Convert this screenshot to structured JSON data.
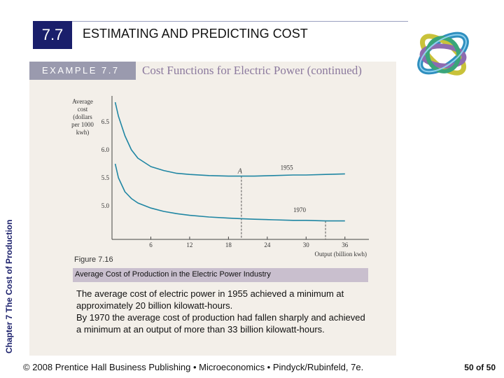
{
  "side_label": "Chapter 7 The Cost of Production",
  "section": {
    "number": "7.7",
    "title": "ESTIMATING AND PREDICTING COST"
  },
  "example": {
    "label": "EXAMPLE 7.7",
    "title": "Cost Functions for Electric Power (continued)"
  },
  "chart_data": {
    "type": "line",
    "ylabel": "Average cost (dollars per 1000 kwh)",
    "xlabel": "Output (billion kwh)",
    "x_ticks": [
      6,
      12,
      18,
      24,
      30,
      36
    ],
    "y_ticks": [
      5.0,
      5.5,
      6.0,
      6.5
    ],
    "y_tick_labels": [
      "5.0",
      "5.5",
      "6.0",
      "6.5"
    ],
    "xlim": [
      0,
      37
    ],
    "ylim": [
      4.4,
      6.9
    ],
    "series": [
      {
        "name": "1955",
        "x": [
          0.5,
          1,
          2,
          3,
          4,
          6,
          8,
          10,
          12,
          15,
          18,
          20,
          22,
          25,
          28,
          30,
          33,
          36
        ],
        "y": [
          6.85,
          6.6,
          6.25,
          6.0,
          5.85,
          5.7,
          5.63,
          5.58,
          5.56,
          5.54,
          5.53,
          5.53,
          5.53,
          5.54,
          5.55,
          5.55,
          5.56,
          5.57
        ]
      },
      {
        "name": "1970",
        "x": [
          0.5,
          1,
          2,
          3,
          4,
          6,
          8,
          10,
          12,
          15,
          18,
          20,
          22,
          25,
          28,
          30,
          33,
          36
        ],
        "y": [
          5.75,
          5.5,
          5.25,
          5.13,
          5.05,
          4.96,
          4.9,
          4.86,
          4.83,
          4.8,
          4.78,
          4.77,
          4.76,
          4.75,
          4.74,
          4.74,
          4.73,
          4.73
        ]
      }
    ],
    "annotations": [
      {
        "text": "A",
        "x": 20,
        "y": 5.53
      },
      {
        "text": "1955",
        "x": 27,
        "y": 5.62
      },
      {
        "text": "1970",
        "x": 29,
        "y": 4.86
      }
    ],
    "reference_lines": [
      {
        "type": "vertical",
        "x": 20,
        "from_y": 5.53
      },
      {
        "type": "vertical",
        "x": 33,
        "from_y": 4.73
      }
    ],
    "grid": false
  },
  "figure": {
    "number": "Figure 7.16",
    "caption": "Average Cost of Production in the Electric Power Industry",
    "paragraphs": [
      "The average cost of electric power in 1955 achieved a minimum at approximately 20 billion kilowatt-hours.",
      "By 1970 the average cost of production had fallen sharply and achieved a minimum at an output of more than 33 billion kilowatt-hours."
    ]
  },
  "footer": "© 2008 Prentice Hall Business Publishing • Microeconomics • Pindyck/Rubinfeld, 7e.",
  "page": "50 of 50",
  "colors": {
    "navy": "#1a1f6b",
    "curve_1955": "#1f86a3",
    "curve_1970": "#1f86a3",
    "panel_bg": "#f3efe9",
    "example_tab": "#9a9aae",
    "caption_bar": "#c9bfce",
    "example_title": "#8c7a9e"
  },
  "logo": {
    "icon": "intertwined-rings-icon"
  }
}
